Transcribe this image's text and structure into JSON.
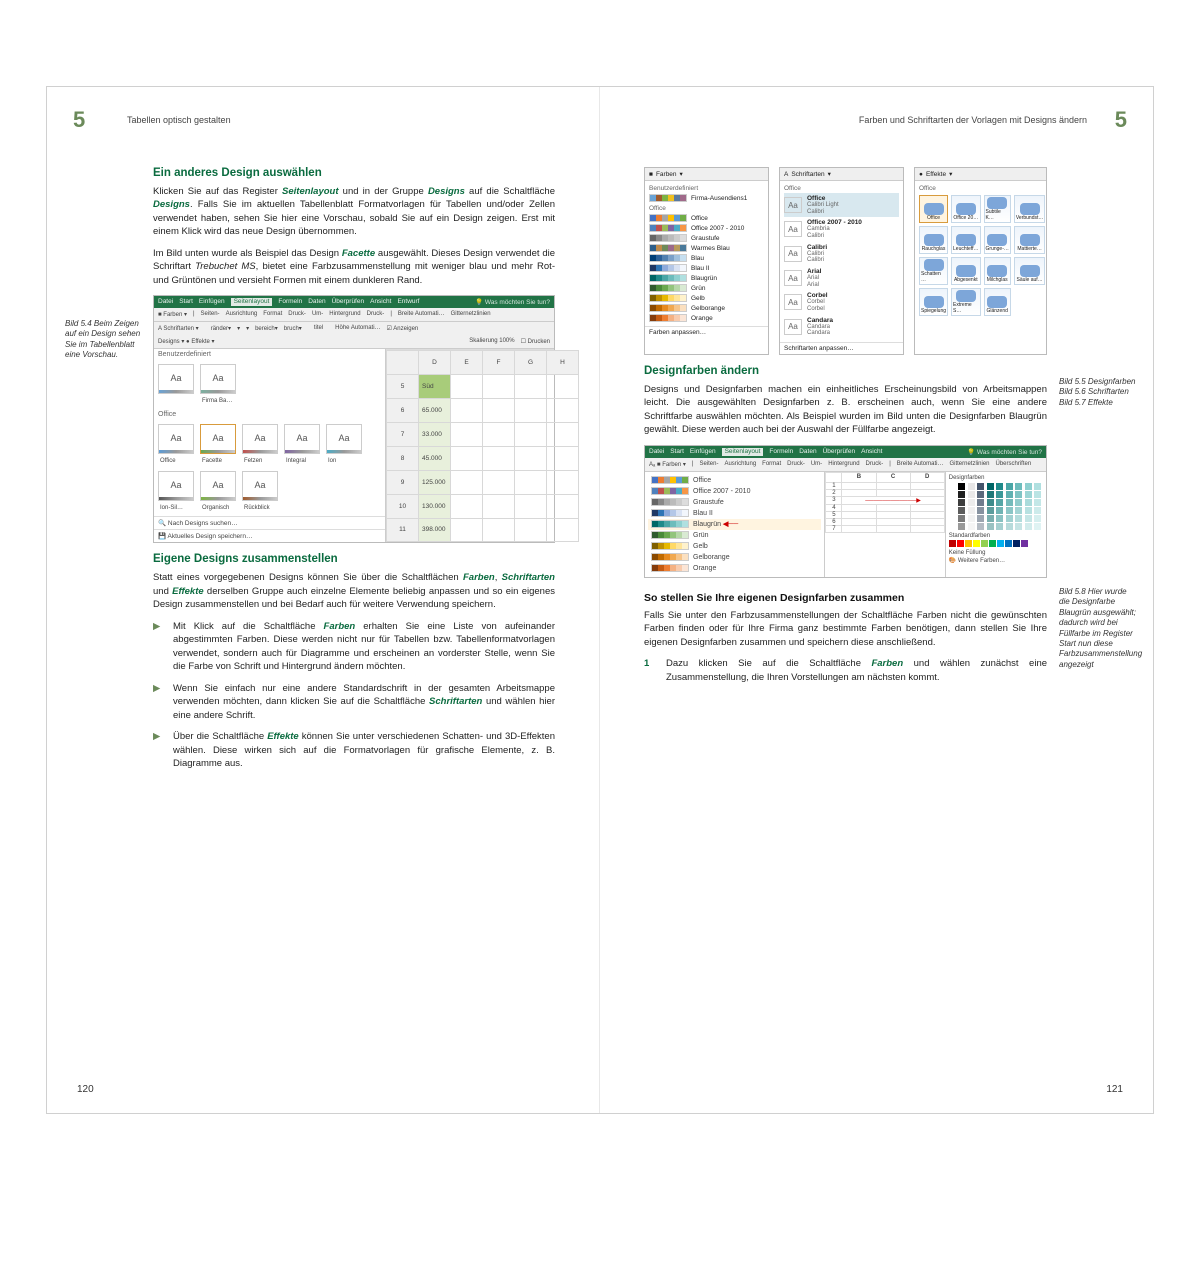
{
  "colors": {
    "accent": "#0a6b3f",
    "chapter": "#6b8a5a",
    "ribbon": "#217346",
    "rowsel": "#d8e8ef",
    "hl": "#fff4e0"
  },
  "left": {
    "chapter": "5",
    "running": "Tabellen optisch gestalten",
    "h3a": "Ein anderes Design auswählen",
    "p1a": "Klicken Sie auf das Register ",
    "p1b": " und in der Gruppe ",
    "p1c": " auf die Schaltfläche ",
    "p1d": ". Falls Sie im aktuellen Tabellenblatt Formatvorlagen für Tabellen und/oder Zellen verwendet haben, sehen Sie hier eine Vorschau, sobald Sie auf ein Design zeigen. Erst mit einem Klick wird das neue Design übernommen.",
    "kw_seitenlayout": "Seitenlayout",
    "kw_designs": "Designs",
    "p2a": "Im Bild unten wurde als Beispiel das Design ",
    "kw_facette": "Facette",
    "p2b": " ausgewählt. Dieses Design verwendet die Schriftart ",
    "it_trebuchet": "Trebuchet MS",
    "p2c": ", bietet eine Farbzusammenstellung mit weniger blau und mehr Rot- und Grüntönen und versieht Formen mit einem dunkleren Rand.",
    "margin1": "Bild 5.4 Beim Zeigen auf ein Design sehen Sie im Tabellenblatt eine Vorschau.",
    "h3b": "Eigene Designs zusammenstellen",
    "p3a": "Statt eines vorgegebenen Designs können Sie über die Schaltflächen ",
    "kw_farben": "Farben",
    "p3b": ", ",
    "kw_schriftarten": "Schriftarten",
    "p3c": " und ",
    "kw_effekte": "Effekte",
    "p3d": " derselben Gruppe auch einzelne Elemente beliebig anpassen und so ein eigenes Design  zusammenstellen und bei Bedarf auch für weitere Verwendung speichern.",
    "b1a": "Mit Klick auf die Schaltfläche ",
    "b1b": " erhalten Sie eine Liste von aufeinander abgestimmten Farben. Diese werden nicht nur für Tabellen bzw. Tabellenformatvorlagen verwendet, sondern auch für Diagramme und erscheinen an vorderster Stelle, wenn Sie die Farbe von Schrift und Hintergrund ändern möchten.",
    "b2a": "Wenn Sie einfach nur eine andere Standardschrift in der gesamten Arbeitsmappe verwenden möchten, dann klicken Sie auf die Schaltfläche ",
    "b2b": " und wählen hier eine andere Schrift.",
    "b3a": "Über die Schaltfläche ",
    "b3b": " können Sie unter verschiedenen Schatten- und 3D-Effekten wählen. Diese wirken sich auf die Formatvorlagen für grafische Elemente, z. B. Diagramme aus.",
    "pagenum": "120"
  },
  "right": {
    "chapter": "5",
    "running": "Farben und Schriftarten der Vorlagen mit Designs ändern",
    "cap1": "Bild 5.5 Designfarben",
    "cap2": "Bild 5.6 Schriftarten",
    "cap3": "Bild 5.7 Effekte",
    "h3a": "Designfarben ändern",
    "p1": "Designs und Designfarben machen ein einheitliches Erscheinungsbild von Arbeitsmappen leicht. Die ausgewählten Designfarben z. B. erscheinen auch, wenn Sie eine andere Schriftfarbe auswählen möchten. Als Beispiel wurden im Bild unten die Designfarben Blaugrün gewählt. Diese werden auch bei der Auswahl der Füllfarbe angezeigt.",
    "margin1": "Bild 5.8 Hier wurde die Designfarbe Blaugrün ausgewählt; dadurch wird bei Füllfarbe im Register Start nun diese Farbzusammenstellung angezeigt",
    "h4a": "So stellen Sie Ihre eigenen Designfarben zusammen",
    "p2": "Falls Sie unter den Farbzusammenstellungen der Schaltfläche Farben nicht die gewünschten Farben finden oder für Ihre Firma ganz bestimmte Farben benötigen, dann stellen Sie Ihre eigenen Designfarben zusammen und speichern diese anschließend.",
    "n1a": "Dazu klicken Sie auf die Schaltfläche ",
    "kw_farben": "Farben",
    "n1b": " und wählen zunächst eine Zusammenstellung, die Ihren Vorstellungen am nächsten kommt.",
    "pagenum": "121"
  },
  "shot1": {
    "tabs": [
      "Datei",
      "Start",
      "Einfügen",
      "Seitenlayout",
      "Formeln",
      "Daten",
      "Überprüfen",
      "Ansicht",
      "Entwurf"
    ],
    "hint": "Was möchten Sie tun?",
    "section_custom": "Benutzerdefiniert",
    "section_office": "Office",
    "themes": [
      {
        "name": "Aa",
        "label": "",
        "c": "#6aa3d5"
      },
      {
        "name": "Aa",
        "label": "Firma Ba…",
        "c": "#7cb0a0"
      }
    ],
    "office_themes": [
      "Office",
      "Facette",
      "Fetzen",
      "Integral",
      "Ion",
      "Ion-Sil…",
      "Organisch",
      "Rückblick"
    ],
    "footer1": "Nach Designs suchen…",
    "footer2": "Aktuelles Design speichern…",
    "cols": [
      "D",
      "E",
      "F",
      "G",
      "H"
    ],
    "rows": [
      [
        "Süd",
        ""
      ],
      [
        "65.000",
        ""
      ],
      [
        "33.000",
        ""
      ],
      [
        "45.000",
        ""
      ],
      [
        "125.000",
        ""
      ],
      [
        "130.000",
        ""
      ],
      [
        "398.000",
        ""
      ]
    ]
  },
  "dd_colors": {
    "title": "Farben",
    "section_custom": "Benutzerdefiniert",
    "custom": "Firma-Ausendiens1",
    "section_office": "Office",
    "items": [
      {
        "name": "Office",
        "sw": [
          "#4472c4",
          "#ed7d31",
          "#a5a5a5",
          "#ffc000",
          "#5b9bd5",
          "#70ad47"
        ]
      },
      {
        "name": "Office 2007 - 2010",
        "sw": [
          "#4f81bd",
          "#c0504d",
          "#9bbb59",
          "#8064a2",
          "#4bacc6",
          "#f79646"
        ]
      },
      {
        "name": "Graustufe",
        "sw": [
          "#666",
          "#888",
          "#aaa",
          "#bbb",
          "#ccc",
          "#ddd"
        ]
      },
      {
        "name": "Warmes Blau",
        "sw": [
          "#2e5f8a",
          "#c08a4a",
          "#6e8a5a",
          "#9c6a8a",
          "#b89a5a",
          "#4a7a9a"
        ]
      },
      {
        "name": "Blau",
        "sw": [
          "#003f77",
          "#2a6099",
          "#5080b0",
          "#7aa0c8",
          "#a0c0dd",
          "#c6dff0"
        ]
      },
      {
        "name": "Blau II",
        "sw": [
          "#1f3864",
          "#2e74b5",
          "#8eaadb",
          "#b4c7e7",
          "#d9e2f3",
          "#f2f6fc"
        ]
      },
      {
        "name": "Blaugrün",
        "sw": [
          "#006666",
          "#1f8a8a",
          "#4aa6a6",
          "#6dbcbc",
          "#8fd0d0",
          "#b0e0e0"
        ]
      },
      {
        "name": "Grün",
        "sw": [
          "#2f5b2f",
          "#4a8a3a",
          "#6aa84f",
          "#93c47d",
          "#b6d7a8",
          "#d9ead3"
        ]
      },
      {
        "name": "Gelb",
        "sw": [
          "#7f6000",
          "#bf9000",
          "#e6b800",
          "#ffd966",
          "#ffe599",
          "#fff2cc"
        ]
      },
      {
        "name": "Gelborange",
        "sw": [
          "#8a4a00",
          "#c06a00",
          "#e68a1f",
          "#f0a850",
          "#f6c488",
          "#fbe0c0"
        ]
      },
      {
        "name": "Orange",
        "sw": [
          "#843c0c",
          "#c55a11",
          "#ed7d31",
          "#f4b183",
          "#f8cbad",
          "#fbe5d6"
        ]
      }
    ],
    "footer": "Farben anpassen…"
  },
  "dd_fonts": {
    "title": "Schriftarten",
    "section": "Office",
    "items": [
      {
        "h": "Office",
        "s": "Calibri Light",
        "b": "Calibri",
        "sel": true
      },
      {
        "h": "Office 2007 - 2010",
        "s": "Cambria",
        "b": "Calibri"
      },
      {
        "h": "Calibri",
        "s": "Calibri",
        "b": "Calibri"
      },
      {
        "h": "Arial",
        "s": "Arial",
        "b": "Arial"
      },
      {
        "h": "Corbel",
        "s": "Corbel",
        "b": "Corbel"
      },
      {
        "h": "Candara",
        "s": "Candara",
        "b": "Candara"
      }
    ],
    "footer": "Schriftarten anpassen…"
  },
  "dd_fx": {
    "title": "Effekte",
    "section": "Office",
    "items": [
      "Office",
      "Office 20…",
      "Subtile K…",
      "Verbundst…",
      "Rauchglas",
      "Leuchteff…",
      "Grunge-…",
      "Mattierte…",
      "Schatten …",
      "Abgesenkt",
      "Milchglas",
      "Säule auf…",
      "Spiegelung",
      "Extreme S…",
      "Glänzend"
    ]
  },
  "shot2": {
    "tabs": [
      "Datei",
      "Start",
      "Einfügen",
      "Seitenlayout",
      "Formeln",
      "Daten",
      "Überprüfen",
      "Ansicht"
    ],
    "hint": "Was möchten Sie tun?",
    "items": [
      {
        "n": "Office",
        "sw": [
          "#4472c4",
          "#ed7d31",
          "#a5a5a5",
          "#ffc000",
          "#5b9bd5",
          "#70ad47"
        ]
      },
      {
        "n": "Office 2007 - 2010",
        "sw": [
          "#4f81bd",
          "#c0504d",
          "#9bbb59",
          "#8064a2",
          "#4bacc6",
          "#f79646"
        ]
      },
      {
        "n": "Graustufe",
        "sw": [
          "#666",
          "#888",
          "#aaa",
          "#bbb",
          "#ccc",
          "#ddd"
        ]
      },
      {
        "n": "Blau II",
        "sw": [
          "#1f3864",
          "#2e74b5",
          "#8eaadb",
          "#b4c7e7",
          "#d9e2f3",
          "#f2f6fc"
        ]
      },
      {
        "n": "Blaugrün",
        "sw": [
          "#006666",
          "#1f8a8a",
          "#4aa6a6",
          "#6dbcbc",
          "#8fd0d0",
          "#b0e0e0"
        ],
        "sel": true
      },
      {
        "n": "Grün",
        "sw": [
          "#2f5b2f",
          "#4a8a3a",
          "#6aa84f",
          "#93c47d",
          "#b6d7a8",
          "#d9ead3"
        ]
      },
      {
        "n": "Gelb",
        "sw": [
          "#7f6000",
          "#bf9000",
          "#e6b800",
          "#ffd966",
          "#ffe599",
          "#fff2cc"
        ]
      },
      {
        "n": "Gelborange",
        "sw": [
          "#8a4a00",
          "#c06a00",
          "#e68a1f",
          "#f0a850",
          "#f6c488",
          "#fbe0c0"
        ]
      },
      {
        "n": "Orange",
        "sw": [
          "#843c0c",
          "#c55a11",
          "#ed7d31",
          "#f4b183",
          "#f8cbad",
          "#fbe5d6"
        ]
      }
    ],
    "panel_title": "Designfarben",
    "panel_std": "Standardfarben",
    "panel_nofill": "Keine Füllung",
    "panel_more": "Weitere Farben…"
  }
}
